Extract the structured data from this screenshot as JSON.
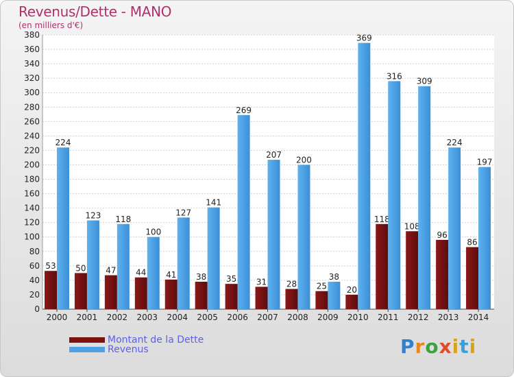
{
  "chart_data": {
    "type": "bar",
    "title": "Revenus/Dette - MANO",
    "subtitle": "(en milliers d'€)",
    "categories": [
      "2000",
      "2001",
      "2002",
      "2003",
      "2004",
      "2005",
      "2006",
      "2007",
      "2008",
      "2009",
      "2010",
      "2011",
      "2012",
      "2013",
      "2014"
    ],
    "series": [
      {
        "name": "Montant de la Dette",
        "color": "#7a1212",
        "values": [
          53,
          50,
          47,
          44,
          41,
          38,
          35,
          31,
          28,
          25,
          20,
          118,
          108,
          96,
          86
        ]
      },
      {
        "name": "Revenus",
        "color": "#4da3e6",
        "values": [
          224,
          123,
          118,
          100,
          127,
          141,
          269,
          207,
          200,
          38,
          369,
          316,
          309,
          224,
          197
        ]
      }
    ],
    "ylim": [
      0,
      380
    ],
    "ytick_step": 20,
    "grid": true,
    "legend_position": "bottom-left"
  },
  "logo": {
    "text": "Proxiti"
  }
}
